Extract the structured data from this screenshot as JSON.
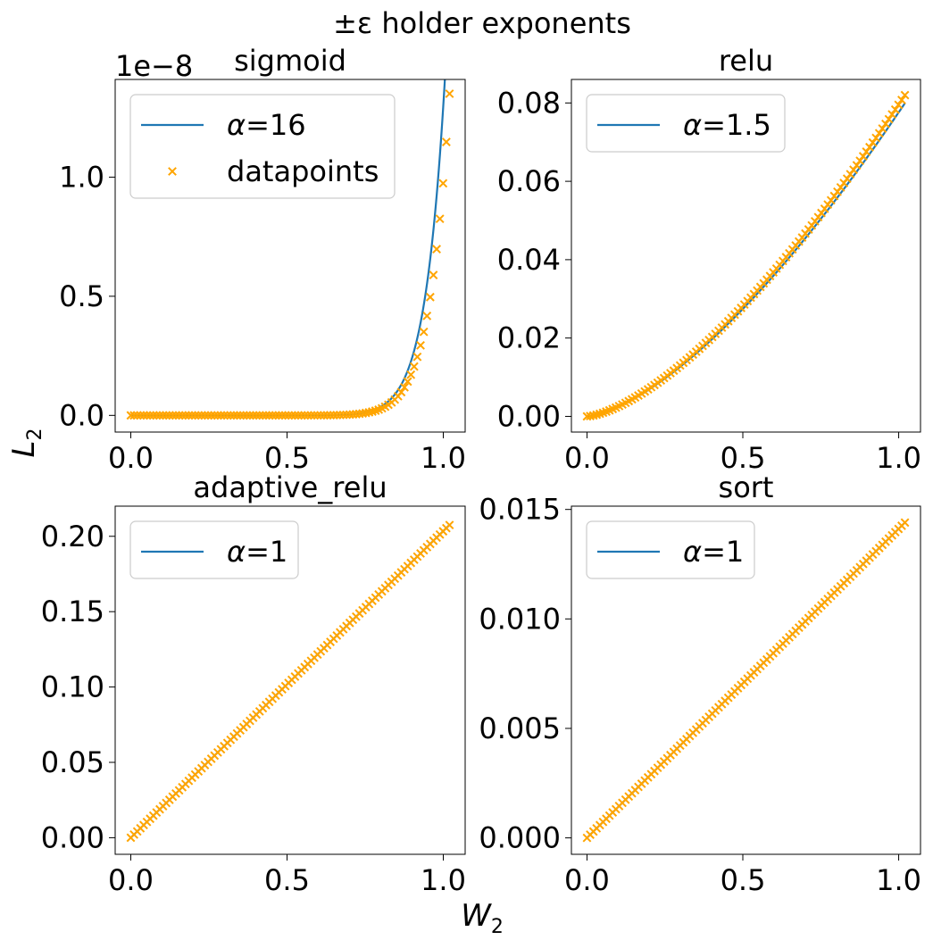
{
  "figure": {
    "suptitle": "±ε holder exponents",
    "xlabel_main": "W",
    "xlabel_sub": "2",
    "ylabel_main": "L",
    "ylabel_sub": "2"
  },
  "colors": {
    "fit": "#1f77b4",
    "datapoints": "#ffa500"
  },
  "chart_data": [
    {
      "type": "line+scatter",
      "title": "sigmoid",
      "offset_text": "1e−8",
      "fit": {
        "kind": "power",
        "alpha": 16,
        "coef": 1.3e-08
      },
      "legend": {
        "position": "upper-left",
        "entries": [
          "α=16",
          "datapoints"
        ]
      },
      "data": {
        "x_range": [
          0,
          1.02
        ],
        "n_points": 100,
        "y_at_max": 1.35e-08
      },
      "xlim": [
        -0.05,
        1.07
      ],
      "ylim": [
        -7e-10,
        1.41e-08
      ],
      "xticks": [
        0.0,
        0.5,
        1.0
      ],
      "xtick_labels": [
        "0.0",
        "0.5",
        "1.0"
      ],
      "yticks": [
        0.0,
        5e-09,
        1e-08
      ],
      "ytick_labels": [
        "0.0",
        "0.5",
        "1.0"
      ]
    },
    {
      "type": "line+scatter",
      "title": "relu",
      "offset_text": "",
      "fit": {
        "kind": "power",
        "alpha": 1.5,
        "coef": 0.0776
      },
      "legend": {
        "position": "upper-left",
        "entries": [
          "α=1.5"
        ]
      },
      "data": {
        "x_range": [
          0,
          1.02
        ],
        "n_points": 100,
        "y_at_max": 0.082
      },
      "xlim": [
        -0.05,
        1.07
      ],
      "ylim": [
        -0.004,
        0.086
      ],
      "xticks": [
        0.0,
        0.5,
        1.0
      ],
      "xtick_labels": [
        "0.0",
        "0.5",
        "1.0"
      ],
      "yticks": [
        0.0,
        0.02,
        0.04,
        0.06,
        0.08
      ],
      "ytick_labels": [
        "0.00",
        "0.02",
        "0.04",
        "0.06",
        "0.08"
      ]
    },
    {
      "type": "line+scatter",
      "title": "adaptive_relu",
      "offset_text": "",
      "fit": {
        "kind": "power",
        "alpha": 1,
        "coef": 0.2035
      },
      "legend": {
        "position": "upper-left",
        "entries": [
          "α=1"
        ]
      },
      "data": {
        "x_range": [
          0,
          1.02
        ],
        "n_points": 100,
        "y_at_max": 0.2075
      },
      "xlim": [
        -0.05,
        1.07
      ],
      "ylim": [
        -0.011,
        0.22
      ],
      "xticks": [
        0.0,
        0.5,
        1.0
      ],
      "xtick_labels": [
        "0.0",
        "0.5",
        "1.0"
      ],
      "yticks": [
        0.0,
        0.05,
        0.1,
        0.15,
        0.2
      ],
      "ytick_labels": [
        "0.00",
        "0.05",
        "0.10",
        "0.15",
        "0.20"
      ]
    },
    {
      "type": "line+scatter",
      "title": "sort",
      "offset_text": "",
      "fit": {
        "kind": "power",
        "alpha": 1,
        "coef": 0.01412
      },
      "legend": {
        "position": "upper-left",
        "entries": [
          "α=1"
        ]
      },
      "data": {
        "x_range": [
          0,
          1.02
        ],
        "n_points": 100,
        "y_at_max": 0.0144
      },
      "xlim": [
        -0.05,
        1.07
      ],
      "ylim": [
        -0.00075,
        0.01515
      ],
      "xticks": [
        0.0,
        0.5,
        1.0
      ],
      "xtick_labels": [
        "0.0",
        "0.5",
        "1.0"
      ],
      "yticks": [
        0.0,
        0.005,
        0.01,
        0.015
      ],
      "ytick_labels": [
        "0.000",
        "0.005",
        "0.010",
        "0.015"
      ]
    }
  ]
}
